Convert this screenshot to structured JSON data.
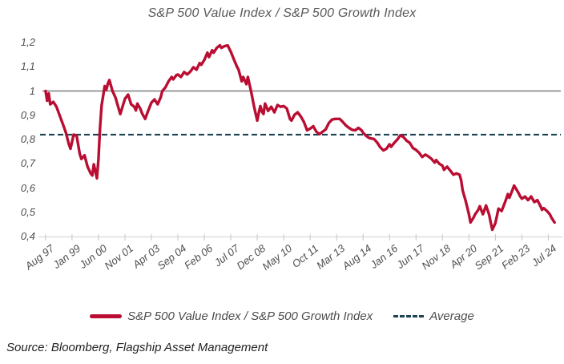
{
  "title": "S&P 500 Value Index / S&P 500 Growth Index",
  "source": "Source: Bloomberg, Flagship Asset Management",
  "legend": {
    "series_label": "S&P 500 Value Index / S&P 500 Growth Index",
    "average_label": "Average"
  },
  "colors": {
    "series": "#B90D32",
    "average": "#1D4355",
    "reference": "#7F7F7F",
    "axis_line": "#D9D9D9",
    "tick_mark": "#C6C6C6",
    "text": "#4D4D4D",
    "title_text": "#595959",
    "source_text": "#222222"
  },
  "chart_data": {
    "type": "line",
    "title": "S&P 500 Value Index / S&P 500 Growth Index",
    "xlabel": "",
    "ylabel": "",
    "ylim": [
      0.4,
      1.2
    ],
    "grid": false,
    "legend_position": "bottom",
    "y_ticks": [
      1.2,
      1.1,
      1.0,
      0.9,
      0.8,
      0.7,
      0.6,
      0.5,
      0.4
    ],
    "y_tick_labels": [
      "1,2",
      "1,1",
      "1",
      "0,9",
      "0,8",
      "0,7",
      "0,6",
      "0,5",
      "0,4"
    ],
    "x_tick_labels": [
      "Aug 97",
      "Jan 99",
      "Jun 00",
      "Nov 01",
      "Apr 03",
      "Sep 04",
      "Feb 06",
      "Jul 07",
      "Dec 08",
      "May 10",
      "Oct 11",
      "Mar 13",
      "Aug 14",
      "Jan 16",
      "Jun 17",
      "Nov 18",
      "Apr 20",
      "Sep 21",
      "Feb 23",
      "Jul 24"
    ],
    "x_tick_months": [
      0,
      17,
      34,
      51,
      68,
      85,
      102,
      119,
      136,
      153,
      170,
      187,
      204,
      221,
      238,
      255,
      272,
      289,
      306,
      323
    ],
    "reference_value": 1.0,
    "average_value": 0.82,
    "series": [
      {
        "name": "S&P 500 Value Index / S&P 500 Growth Index",
        "points": [
          [
            0,
            1.0
          ],
          [
            1,
            0.96
          ],
          [
            2,
            0.99
          ],
          [
            3,
            0.945
          ],
          [
            5,
            0.955
          ],
          [
            7,
            0.935
          ],
          [
            9,
            0.9
          ],
          [
            11,
            0.865
          ],
          [
            13,
            0.83
          ],
          [
            15,
            0.78
          ],
          [
            16,
            0.762
          ],
          [
            18,
            0.82
          ],
          [
            20,
            0.815
          ],
          [
            22,
            0.74
          ],
          [
            23,
            0.72
          ],
          [
            25,
            0.735
          ],
          [
            27,
            0.688
          ],
          [
            29,
            0.66
          ],
          [
            30,
            0.652
          ],
          [
            31,
            0.698
          ],
          [
            33,
            0.64
          ],
          [
            34,
            0.72
          ],
          [
            35,
            0.85
          ],
          [
            36,
            0.94
          ],
          [
            38,
            1.02
          ],
          [
            39,
            1.005
          ],
          [
            40,
            1.03
          ],
          [
            41,
            1.045
          ],
          [
            43,
            1.0
          ],
          [
            45,
            0.972
          ],
          [
            46,
            0.948
          ],
          [
            48,
            0.905
          ],
          [
            51,
            0.968
          ],
          [
            53,
            0.985
          ],
          [
            55,
            0.945
          ],
          [
            57,
            0.935
          ],
          [
            58,
            0.92
          ],
          [
            59,
            0.948
          ],
          [
            61,
            0.925
          ],
          [
            62,
            0.908
          ],
          [
            64,
            0.885
          ],
          [
            66,
            0.92
          ],
          [
            68,
            0.952
          ],
          [
            70,
            0.965
          ],
          [
            72,
            0.945
          ],
          [
            74,
            0.975
          ],
          [
            75,
            1.0
          ],
          [
            77,
            1.015
          ],
          [
            79,
            1.04
          ],
          [
            81,
            1.058
          ],
          [
            82,
            1.048
          ],
          [
            84,
            1.065
          ],
          [
            85,
            1.068
          ],
          [
            87,
            1.058
          ],
          [
            89,
            1.078
          ],
          [
            91,
            1.068
          ],
          [
            93,
            1.08
          ],
          [
            95,
            1.098
          ],
          [
            97,
            1.088
          ],
          [
            99,
            1.115
          ],
          [
            100,
            1.108
          ],
          [
            102,
            1.128
          ],
          [
            104,
            1.158
          ],
          [
            105,
            1.14
          ],
          [
            107,
            1.168
          ],
          [
            108,
            1.158
          ],
          [
            110,
            1.178
          ],
          [
            112,
            1.188
          ],
          [
            113,
            1.178
          ],
          [
            115,
            1.185
          ],
          [
            117,
            1.188
          ],
          [
            119,
            1.162
          ],
          [
            121,
            1.13
          ],
          [
            123,
            1.1
          ],
          [
            124,
            1.088
          ],
          [
            126,
            1.04
          ],
          [
            127,
            1.058
          ],
          [
            129,
            1.028
          ],
          [
            130,
            1.058
          ],
          [
            132,
            1.0
          ],
          [
            134,
            0.935
          ],
          [
            136,
            0.878
          ],
          [
            137,
            0.91
          ],
          [
            138,
            0.938
          ],
          [
            139,
            0.915
          ],
          [
            140,
            0.905
          ],
          [
            141,
            0.948
          ],
          [
            143,
            0.918
          ],
          [
            145,
            0.935
          ],
          [
            147,
            0.912
          ],
          [
            149,
            0.942
          ],
          [
            151,
            0.935
          ],
          [
            153,
            0.938
          ],
          [
            155,
            0.928
          ],
          [
            157,
            0.885
          ],
          [
            158,
            0.878
          ],
          [
            160,
            0.902
          ],
          [
            162,
            0.912
          ],
          [
            164,
            0.895
          ],
          [
            166,
            0.872
          ],
          [
            168,
            0.838
          ],
          [
            170,
            0.845
          ],
          [
            172,
            0.855
          ],
          [
            174,
            0.832
          ],
          [
            176,
            0.822
          ],
          [
            178,
            0.832
          ],
          [
            180,
            0.842
          ],
          [
            182,
            0.868
          ],
          [
            184,
            0.882
          ],
          [
            186,
            0.885
          ],
          [
            189,
            0.885
          ],
          [
            191,
            0.872
          ],
          [
            193,
            0.858
          ],
          [
            195,
            0.848
          ],
          [
            197,
            0.84
          ],
          [
            199,
            0.838
          ],
          [
            201,
            0.848
          ],
          [
            203,
            0.838
          ],
          [
            204,
            0.828
          ],
          [
            206,
            0.815
          ],
          [
            208,
            0.806
          ],
          [
            211,
            0.802
          ],
          [
            213,
            0.788
          ],
          [
            215,
            0.768
          ],
          [
            217,
            0.755
          ],
          [
            219,
            0.762
          ],
          [
            221,
            0.78
          ],
          [
            222,
            0.77
          ],
          [
            224,
            0.786
          ],
          [
            226,
            0.8
          ],
          [
            228,
            0.818
          ],
          [
            230,
            0.81
          ],
          [
            232,
            0.795
          ],
          [
            234,
            0.786
          ],
          [
            236,
            0.765
          ],
          [
            238,
            0.757
          ],
          [
            240,
            0.745
          ],
          [
            242,
            0.728
          ],
          [
            244,
            0.738
          ],
          [
            246,
            0.73
          ],
          [
            248,
            0.72
          ],
          [
            250,
            0.705
          ],
          [
            251,
            0.715
          ],
          [
            253,
            0.7
          ],
          [
            255,
            0.692
          ],
          [
            256,
            0.675
          ],
          [
            258,
            0.688
          ],
          [
            260,
            0.672
          ],
          [
            262,
            0.655
          ],
          [
            264,
            0.66
          ],
          [
            266,
            0.655
          ],
          [
            267,
            0.632
          ],
          [
            268,
            0.59
          ],
          [
            270,
            0.545
          ],
          [
            272,
            0.492
          ],
          [
            273,
            0.458
          ],
          [
            275,
            0.478
          ],
          [
            276,
            0.492
          ],
          [
            278,
            0.51
          ],
          [
            279,
            0.525
          ],
          [
            281,
            0.492
          ],
          [
            283,
            0.528
          ],
          [
            285,
            0.49
          ],
          [
            286,
            0.458
          ],
          [
            287,
            0.428
          ],
          [
            289,
            0.455
          ],
          [
            290,
            0.485
          ],
          [
            291,
            0.515
          ],
          [
            293,
            0.505
          ],
          [
            295,
            0.538
          ],
          [
            296,
            0.555
          ],
          [
            297,
            0.575
          ],
          [
            298,
            0.56
          ],
          [
            300,
            0.592
          ],
          [
            301,
            0.61
          ],
          [
            302,
            0.6
          ],
          [
            304,
            0.578
          ],
          [
            305,
            0.565
          ],
          [
            306,
            0.556
          ],
          [
            308,
            0.565
          ],
          [
            310,
            0.55
          ],
          [
            312,
            0.565
          ],
          [
            314,
            0.542
          ],
          [
            316,
            0.55
          ],
          [
            318,
            0.525
          ],
          [
            319,
            0.51
          ],
          [
            320,
            0.517
          ],
          [
            322,
            0.506
          ],
          [
            324,
            0.492
          ],
          [
            325,
            0.478
          ],
          [
            327,
            0.458
          ]
        ]
      }
    ]
  }
}
